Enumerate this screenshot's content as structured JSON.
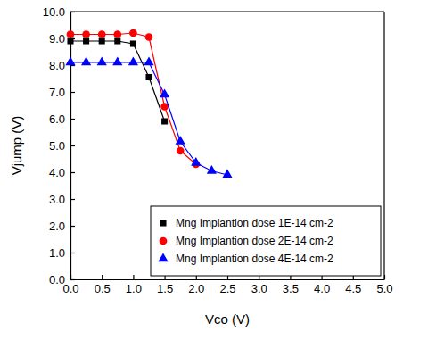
{
  "chart_data": {
    "type": "line",
    "x_label": "Vco (V)",
    "y_label": "Vjump (V)",
    "xlim": [
      0,
      5
    ],
    "ylim": [
      0,
      10
    ],
    "xticks": [
      {
        "value": 0,
        "label": "0.0"
      },
      {
        "value": 0.5,
        "label": "0.5"
      },
      {
        "value": 1,
        "label": "1.0"
      },
      {
        "value": 1.5,
        "label": "1.5"
      },
      {
        "value": 2,
        "label": "2.0"
      },
      {
        "value": 2.5,
        "label": "2.5"
      },
      {
        "value": 3,
        "label": "3.0"
      },
      {
        "value": 3.5,
        "label": "3.5"
      },
      {
        "value": 4,
        "label": "4.0"
      },
      {
        "value": 4.5,
        "label": "4.5"
      },
      {
        "value": 5,
        "label": "5.0"
      }
    ],
    "yticks": [
      {
        "value": 0,
        "label": "0.0"
      },
      {
        "value": 1,
        "label": "1.0"
      },
      {
        "value": 2,
        "label": "2.0"
      },
      {
        "value": 3,
        "label": "3.0"
      },
      {
        "value": 4,
        "label": "4.0"
      },
      {
        "value": 5,
        "label": "5.0"
      },
      {
        "value": 6,
        "label": "6.0"
      },
      {
        "value": 7,
        "label": "7.0"
      },
      {
        "value": 8,
        "label": "8.0"
      },
      {
        "value": 9,
        "label": "9.0"
      },
      {
        "value": 10,
        "label": "10.0"
      }
    ],
    "grid": false,
    "legend": "lower right",
    "series": [
      {
        "name": "Mng Implantion dose 1E-14 cm-2",
        "color": "#000000",
        "marker": "square",
        "x": [
          0,
          0.25,
          0.5,
          0.75,
          1.0,
          1.25,
          1.5
        ],
        "values": [
          8.9,
          8.9,
          8.9,
          8.9,
          8.8,
          7.55,
          5.9
        ]
      },
      {
        "name": "Mng Implantion dose 2E-14 cm-2",
        "color": "#ff0000",
        "marker": "circle",
        "x": [
          0,
          0.25,
          0.5,
          0.75,
          1.0,
          1.25,
          1.5,
          1.75,
          2.0
        ],
        "values": [
          9.15,
          9.15,
          9.15,
          9.15,
          9.2,
          9.05,
          6.45,
          4.8,
          4.3
        ]
      },
      {
        "name": "Mng Implantion dose 4E-14 cm-2",
        "color": "#0000ff",
        "marker": "triangle",
        "x": [
          0,
          0.25,
          0.5,
          0.75,
          1.0,
          1.25,
          1.5,
          1.75,
          2.0,
          2.25,
          2.5
        ],
        "values": [
          8.1,
          8.1,
          8.1,
          8.1,
          8.1,
          8.1,
          6.9,
          5.15,
          4.35,
          4.05,
          3.9
        ]
      }
    ]
  }
}
